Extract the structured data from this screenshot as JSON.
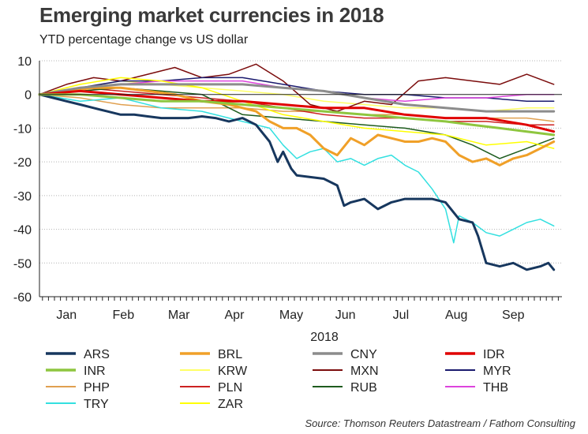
{
  "chart_data": {
    "type": "line",
    "title": "Emerging market currencies in 2018",
    "subtitle": "YTD percentage change vs US dollar",
    "xlabel": "2018",
    "ylabel": "",
    "ylim": [
      -60,
      10
    ],
    "yticks": [
      10,
      0,
      -10,
      -20,
      -30,
      -40,
      -50,
      -60
    ],
    "month_labels": [
      "Jan",
      "Feb",
      "Mar",
      "Apr",
      "May",
      "Jun",
      "Jul",
      "Aug",
      "Sep"
    ],
    "x_unit": "trading week of 2018 (0 = 1 Jan)",
    "xlim": [
      0,
      38.6
    ],
    "grid": true,
    "source": "Source: Thomson Reuters Datastream / Fathom Consulting",
    "series": [
      {
        "name": "ARS",
        "color": "#17375e",
        "width": 3,
        "x": [
          0,
          1,
          2,
          3,
          4,
          5,
          6,
          7,
          8,
          9,
          10,
          11,
          12,
          13,
          14,
          15,
          16,
          17,
          17.6,
          18,
          18.6,
          19,
          20,
          21,
          22,
          22.5,
          23,
          24,
          25,
          26,
          27,
          28,
          29,
          30,
          31,
          32,
          32.4,
          33,
          34,
          35,
          36,
          37,
          37.6,
          38
        ],
        "values": [
          0,
          -1,
          -2,
          -3,
          -4,
          -5,
          -6,
          -6,
          -6.5,
          -7,
          -7,
          -7,
          -6.5,
          -7,
          -8,
          -7,
          -9,
          -14,
          -20,
          -17,
          -22,
          -24,
          -24.5,
          -25,
          -27,
          -33,
          -32,
          -31,
          -34,
          -32,
          -31,
          -31,
          -31,
          -32,
          -37,
          -38,
          -42,
          -50,
          -51,
          -50,
          -52,
          -51,
          -50,
          -52
        ]
      },
      {
        "name": "BRL",
        "color": "#f0a028",
        "width": 3,
        "x": [
          0,
          2,
          4,
          6,
          8,
          10,
          12,
          14,
          16,
          17,
          18,
          19,
          20,
          21,
          22,
          23,
          24,
          25,
          26,
          27,
          28,
          29,
          30,
          31,
          32,
          33,
          34,
          35,
          36,
          37,
          38
        ],
        "values": [
          0,
          1,
          2,
          2,
          1,
          0,
          -2,
          -3,
          -5,
          -8,
          -10,
          -10,
          -12,
          -16,
          -18,
          -13,
          -15,
          -12,
          -13,
          -14,
          -14,
          -13,
          -14,
          -18,
          -20,
          -19,
          -21,
          -19,
          -18,
          -16,
          -14
        ]
      },
      {
        "name": "CNY",
        "color": "#8c8c8c",
        "width": 3,
        "x": [
          0,
          3,
          6,
          9,
          12,
          15,
          18,
          21,
          24,
          27,
          30,
          33,
          36,
          38
        ],
        "values": [
          0,
          2,
          3,
          3,
          3,
          3,
          2,
          1,
          -1,
          -3,
          -4,
          -5,
          -5,
          -5
        ]
      },
      {
        "name": "IDR",
        "color": "#e00000",
        "width": 3,
        "x": [
          0,
          3,
          6,
          9,
          12,
          15,
          18,
          21,
          24,
          27,
          30,
          33,
          36,
          38
        ],
        "values": [
          0,
          1,
          0,
          -1,
          -2,
          -2,
          -3,
          -4,
          -4,
          -6,
          -7,
          -7,
          -9,
          -11
        ]
      },
      {
        "name": "INR",
        "color": "#8ec63f",
        "width": 3,
        "x": [
          0,
          3,
          6,
          9,
          12,
          15,
          18,
          21,
          24,
          27,
          30,
          32,
          34,
          36,
          38
        ],
        "values": [
          0,
          0,
          -1,
          -2,
          -2,
          -3,
          -4,
          -5,
          -6,
          -7,
          -8,
          -9,
          -10,
          -11,
          -12
        ]
      },
      {
        "name": "KRW",
        "color": "#ffff66",
        "width": 1.5,
        "x": [
          0,
          3,
          6,
          9,
          12,
          15,
          18,
          21,
          24,
          27,
          30,
          33,
          36,
          38
        ],
        "values": [
          0,
          2,
          4,
          3,
          2,
          1,
          0,
          -2,
          -3,
          -4,
          -4,
          -5,
          -4,
          -4
        ]
      },
      {
        "name": "MXN",
        "color": "#7b0c0c",
        "width": 1.5,
        "x": [
          0,
          2,
          4,
          6,
          8,
          10,
          12,
          14,
          16,
          18,
          20,
          22,
          24,
          26,
          28,
          30,
          32,
          34,
          36,
          38
        ],
        "values": [
          0,
          3,
          5,
          4,
          6,
          8,
          5,
          6,
          9,
          4,
          -3,
          -5,
          -2,
          -3,
          4,
          5,
          4,
          3,
          6,
          3
        ]
      },
      {
        "name": "MYR",
        "color": "#1a1a6e",
        "width": 1.5,
        "x": [
          0,
          3,
          6,
          9,
          12,
          15,
          18,
          21,
          24,
          27,
          30,
          33,
          36,
          38
        ],
        "values": [
          0,
          2,
          4,
          4,
          5,
          5,
          3,
          1,
          0,
          0,
          -1,
          -1,
          -2,
          -2
        ]
      },
      {
        "name": "PHP",
        "color": "#e0a050",
        "width": 1.5,
        "x": [
          0,
          3,
          6,
          9,
          12,
          15,
          18,
          21,
          24,
          27,
          30,
          33,
          36,
          38
        ],
        "values": [
          0,
          -1,
          -3,
          -4,
          -4,
          -4,
          -5,
          -5,
          -6,
          -6,
          -7,
          -7,
          -7,
          -8
        ]
      },
      {
        "name": "PLN",
        "color": "#cc2222",
        "width": 1.5,
        "x": [
          0,
          3,
          6,
          9,
          12,
          15,
          18,
          21,
          24,
          27,
          30,
          33,
          36,
          38
        ],
        "values": [
          0,
          2,
          1,
          0,
          -1,
          -2,
          -4,
          -6,
          -7,
          -7,
          -8,
          -8,
          -9,
          -9
        ]
      },
      {
        "name": "RUB",
        "color": "#1e5c1e",
        "width": 1.5,
        "x": [
          0,
          3,
          6,
          9,
          12,
          15,
          18,
          21,
          24,
          27,
          30,
          32,
          34,
          36,
          38
        ],
        "values": [
          0,
          1,
          2,
          1,
          0,
          -6,
          -7,
          -8,
          -9,
          -10,
          -12,
          -15,
          -19,
          -16,
          -13
        ]
      },
      {
        "name": "THB",
        "color": "#dd44dd",
        "width": 1.5,
        "x": [
          0,
          3,
          6,
          9,
          12,
          15,
          18,
          21,
          24,
          27,
          30,
          33,
          36,
          38
        ],
        "values": [
          0,
          2,
          3,
          4,
          4,
          4,
          2,
          1,
          -1,
          -2,
          -1,
          -1,
          0,
          0
        ]
      },
      {
        "name": "TRY",
        "color": "#33e0e0",
        "width": 1.5,
        "x": [
          0,
          3,
          6,
          9,
          12,
          14,
          16,
          17,
          18,
          19,
          20,
          21,
          22,
          23,
          24,
          25,
          26,
          27,
          28,
          29,
          30,
          30.6,
          31,
          32,
          33,
          34,
          35,
          36,
          37,
          38
        ],
        "values": [
          0,
          -2,
          -1,
          -4,
          -5,
          -7,
          -9,
          -10,
          -15,
          -19,
          -17,
          -16,
          -20,
          -19,
          -21,
          -19,
          -18,
          -21,
          -23,
          -28,
          -34,
          -44,
          -36,
          -38,
          -41,
          -42,
          -40,
          -38,
          -37,
          -39
        ]
      },
      {
        "name": "ZAR",
        "color": "#ffff00",
        "width": 1.5,
        "x": [
          0,
          3,
          6,
          9,
          12,
          15,
          18,
          21,
          24,
          27,
          30,
          33,
          36,
          38
        ],
        "values": [
          0,
          3,
          5,
          4,
          2,
          -2,
          -6,
          -8,
          -10,
          -11,
          -12,
          -15,
          -14,
          -16
        ]
      }
    ]
  }
}
